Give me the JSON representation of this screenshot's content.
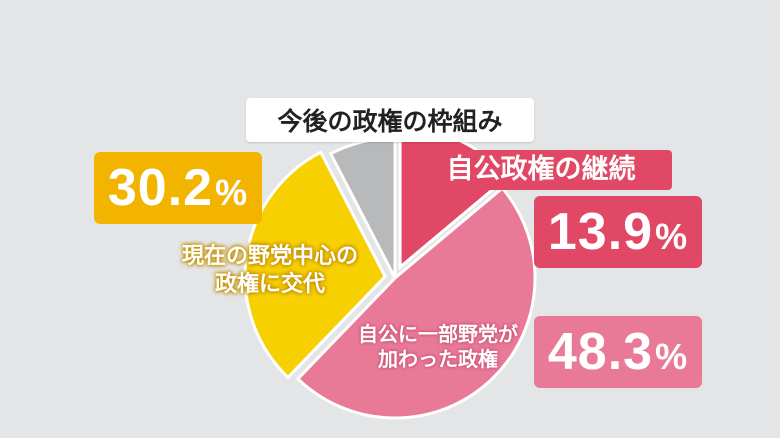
{
  "title": "今後の政権の枠組み",
  "chart_data": {
    "type": "pie",
    "title": "今後の政権の枠組み",
    "unit": "%",
    "slices": [
      {
        "label": "自公政権の継続",
        "value": 13.9,
        "value_text": "13.9",
        "color": "#e04865"
      },
      {
        "label": "自公に一部野党が加わった政権",
        "label_lines": [
          "自公に一部野党が",
          "加わった政権"
        ],
        "value": 48.3,
        "value_text": "48.3",
        "color": "#e87a98"
      },
      {
        "label": "現在の野党中心の政権に交代",
        "label_lines": [
          "現在の野党中心の",
          "政権に交代"
        ],
        "value": 30.2,
        "value_text": "30.2",
        "color": "#f6d000"
      },
      {
        "label": "",
        "value": 7.6,
        "color": "#b8b9bb"
      }
    ]
  }
}
